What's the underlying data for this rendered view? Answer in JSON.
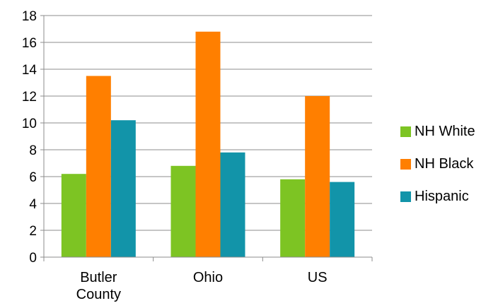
{
  "chart_data": {
    "type": "bar",
    "categories": [
      "Butler County",
      "Ohio",
      "US"
    ],
    "category_lines": [
      [
        "Butler",
        "County"
      ],
      [
        "Ohio"
      ],
      [
        "US"
      ]
    ],
    "series": [
      {
        "name": "NH White",
        "color": "#7dc423",
        "values": [
          6.2,
          6.8,
          5.8
        ]
      },
      {
        "name": "NH Black",
        "color": "#ff7f00",
        "values": [
          13.5,
          16.8,
          12.0
        ]
      },
      {
        "name": "Hispanic",
        "color": "#1294a9",
        "values": [
          10.2,
          7.8,
          5.6
        ]
      }
    ],
    "yticks": [
      "0",
      "2",
      "4",
      "6",
      "8",
      "10",
      "12",
      "14",
      "16",
      "18"
    ],
    "ylim": [
      0,
      18
    ],
    "grid": true,
    "legend_position": "right"
  }
}
